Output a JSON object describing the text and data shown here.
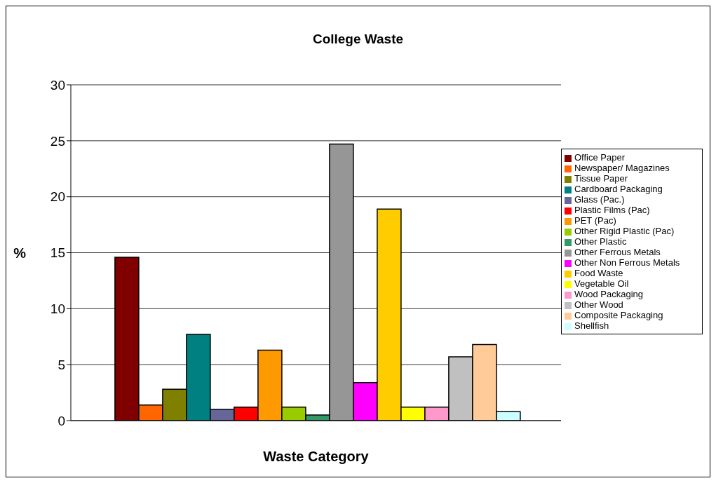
{
  "chart_data": {
    "type": "bar",
    "title": "College Waste",
    "xlabel": "Waste Category",
    "ylabel": "%",
    "categories": [
      null
    ],
    "series": [
      {
        "name": "Office Paper",
        "color": "#800000",
        "values": [
          14.6
        ]
      },
      {
        "name": "Newspaper/ Magazines",
        "color": "#ff6600",
        "values": [
          1.4
        ]
      },
      {
        "name": "Tissue Paper",
        "color": "#808000",
        "values": [
          2.8
        ]
      },
      {
        "name": "Cardboard Packaging",
        "color": "#008080",
        "values": [
          7.7
        ]
      },
      {
        "name": "Glass (Pac.)",
        "color": "#666699",
        "values": [
          1.0
        ]
      },
      {
        "name": "Plastic Films (Pac)",
        "color": "#ff0000",
        "values": [
          1.2
        ]
      },
      {
        "name": "PET (Pac)",
        "color": "#ff9900",
        "values": [
          6.3
        ]
      },
      {
        "name": "Other Rigid Plastic (Pac)",
        "color": "#99cc00",
        "values": [
          1.2
        ]
      },
      {
        "name": "Other Plastic",
        "color": "#339966",
        "values": [
          0.5
        ]
      },
      {
        "name": "Other Ferrous Metals",
        "color": "#969696",
        "values": [
          24.7
        ]
      },
      {
        "name": "Other Non Ferrous  Metals",
        "color": "#ff00ff",
        "values": [
          3.4
        ]
      },
      {
        "name": "Food Waste",
        "color": "#ffcc00",
        "values": [
          18.9
        ]
      },
      {
        "name": "Vegetable Oil",
        "color": "#ffff00",
        "values": [
          1.2
        ]
      },
      {
        "name": "Wood Packaging",
        "color": "#ff99cc",
        "values": [
          1.2
        ]
      },
      {
        "name": "Other Wood",
        "color": "#c0c0c0",
        "values": [
          5.7
        ]
      },
      {
        "name": "Composite Packaging",
        "color": "#ffcc99",
        "values": [
          6.8
        ]
      },
      {
        "name": "Shellfish",
        "color": "#ccffff",
        "values": [
          0.8
        ]
      }
    ],
    "ylim": [
      0,
      30
    ],
    "yticks": [
      0,
      5,
      10,
      15,
      20,
      25,
      30
    ],
    "grid": "y",
    "legend": "right"
  }
}
